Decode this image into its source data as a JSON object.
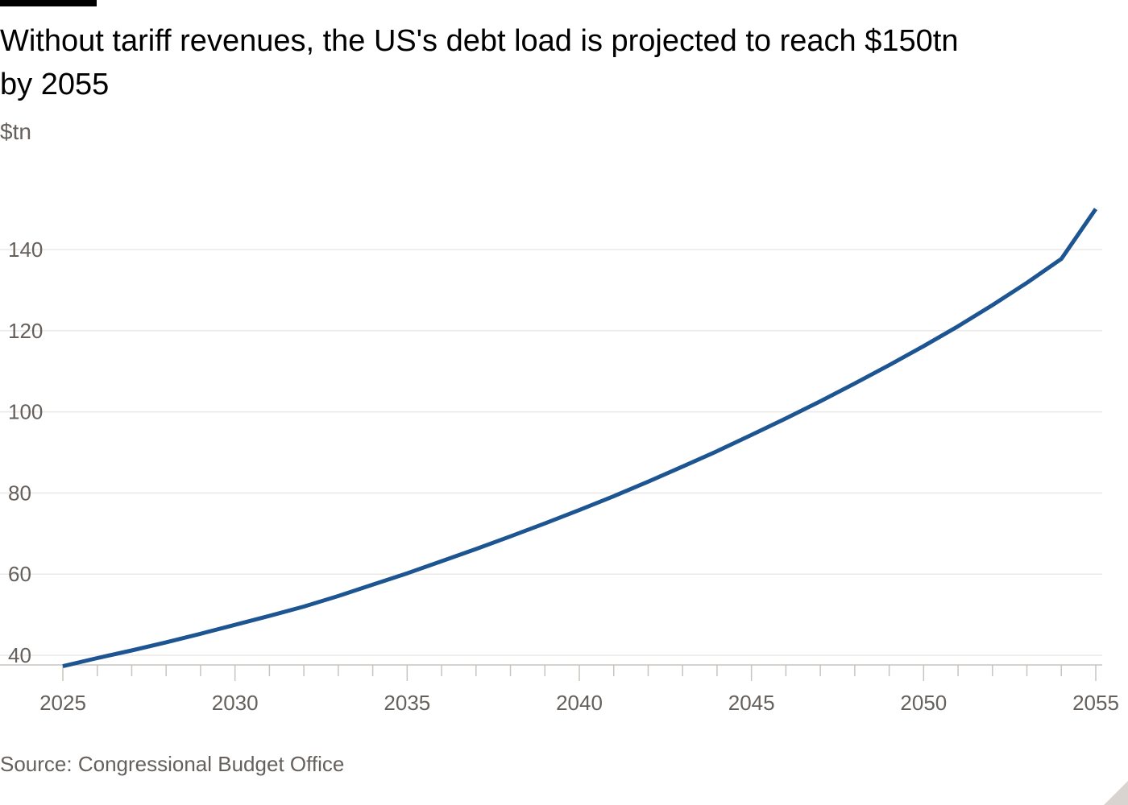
{
  "title": "Without tariff revenues, the US's debt load is projected to reach $150tn by 2055",
  "unit": "$tn",
  "source": "Source: Congressional Budget Office",
  "colors": {
    "line": "#1d5592",
    "grid": "#ebe8e5",
    "axis": "#c8c4bf",
    "tick_text": "#66605c"
  },
  "chart_data": {
    "type": "line",
    "title": "Without tariff revenues, the US's debt load is projected to reach $150tn by 2055",
    "ylabel": "$tn",
    "xlabel": "",
    "xlim": [
      2025,
      2055
    ],
    "ylim": [
      36,
      160
    ],
    "x_ticks": [
      2025,
      2030,
      2035,
      2040,
      2045,
      2050,
      2055
    ],
    "y_ticks": [
      40,
      60,
      80,
      100,
      120,
      140
    ],
    "grid": true,
    "legend": "none",
    "x": [
      2025,
      2026,
      2027,
      2028,
      2029,
      2030,
      2031,
      2032,
      2033,
      2034,
      2035,
      2036,
      2037,
      2038,
      2039,
      2040,
      2041,
      2042,
      2043,
      2044,
      2045,
      2046,
      2047,
      2048,
      2049,
      2050,
      2051,
      2052,
      2053,
      2054,
      2055
    ],
    "series": [
      {
        "values": [
          37.3,
          39.3,
          41.2,
          43.2,
          45.3,
          47.5,
          49.7,
          52.0,
          54.6,
          57.4,
          60.2,
          63.2,
          66.2,
          69.3,
          72.5,
          75.8,
          79.2,
          82.8,
          86.5,
          90.3,
          94.3,
          98.4,
          102.6,
          107.0,
          111.5,
          116.2,
          121.1,
          126.3,
          131.8,
          137.7,
          150.0
        ]
      }
    ]
  }
}
